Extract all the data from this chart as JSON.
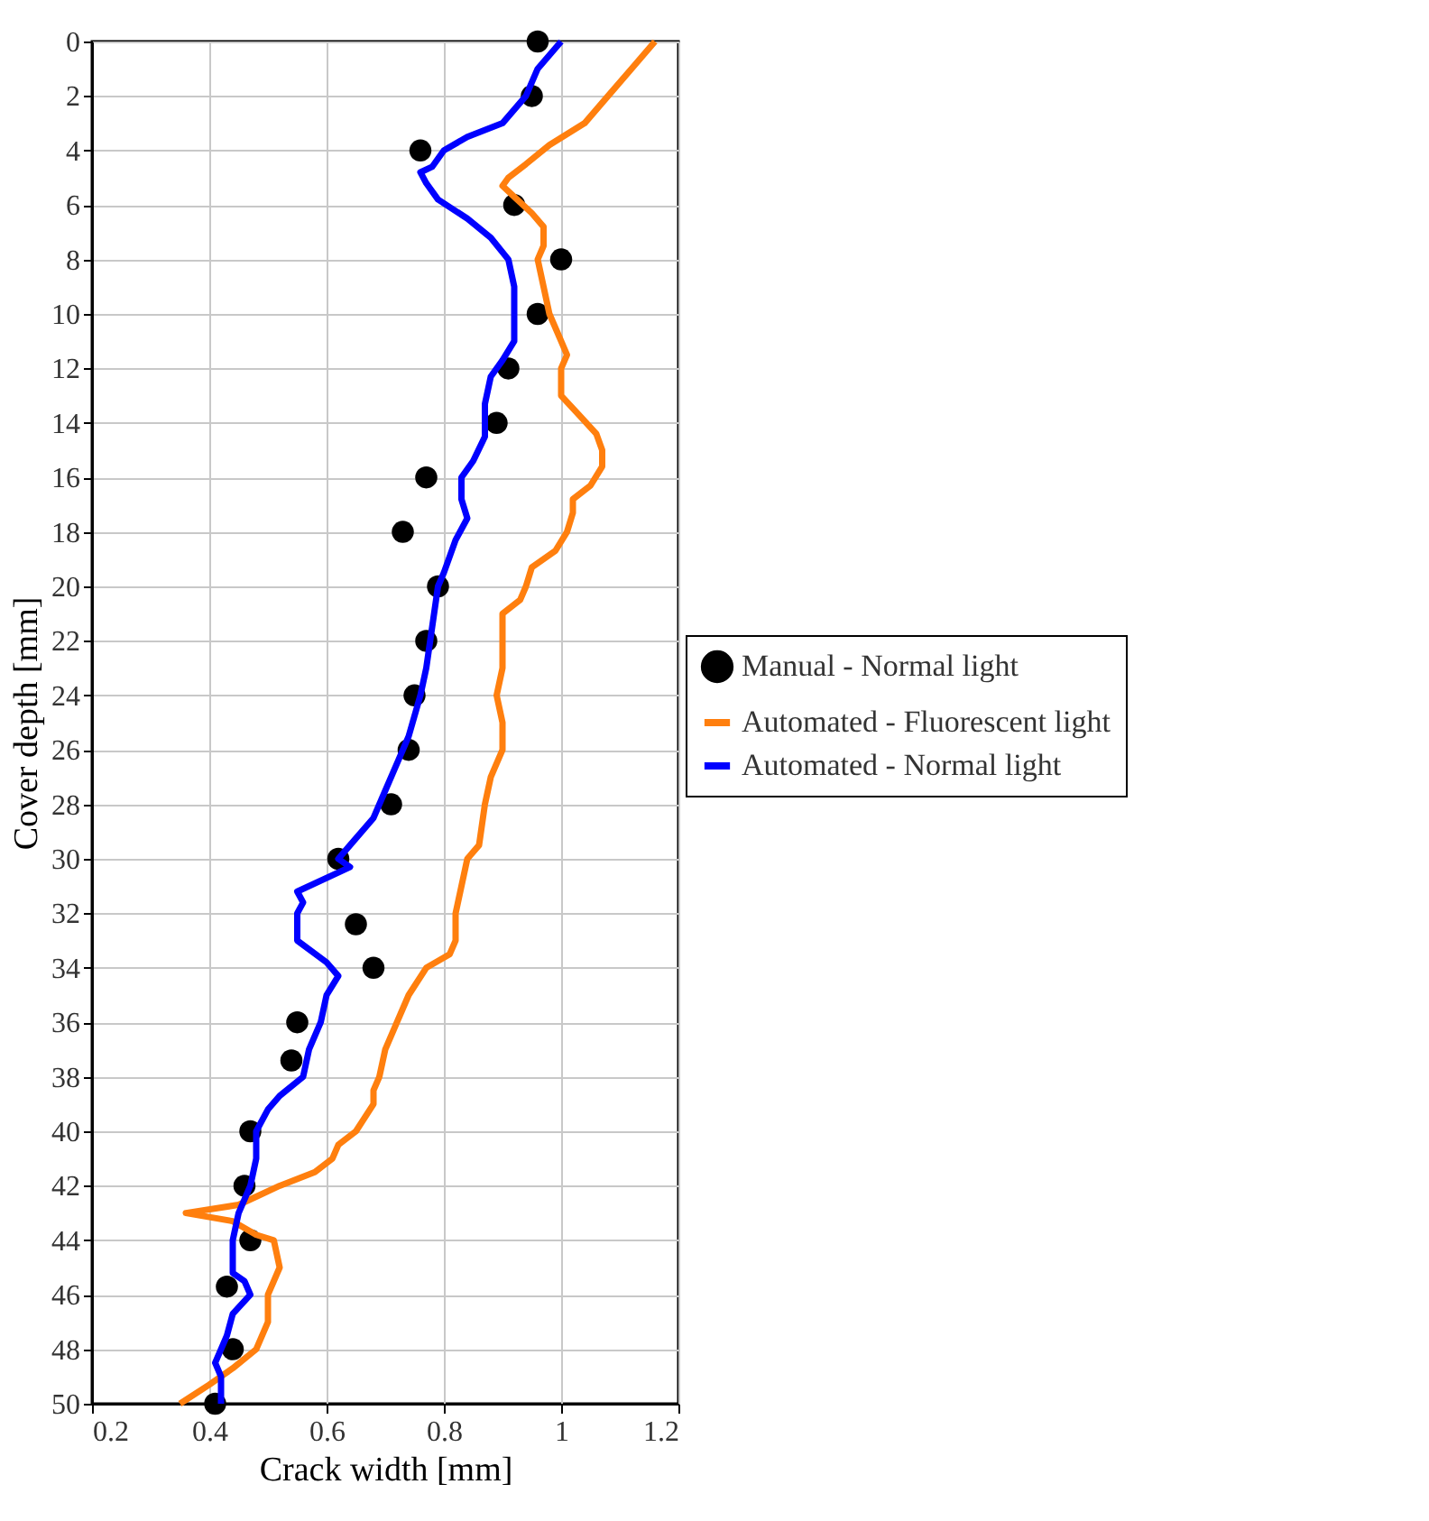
{
  "chart_data": {
    "type": "line",
    "xlabel": "Crack width [mm]",
    "ylabel": "Cover depth [mm]",
    "xlim": [
      0.2,
      1.2
    ],
    "xticks": [
      0.2,
      0.4,
      0.6,
      0.8,
      1,
      1.2
    ],
    "ylim": [
      50,
      0
    ],
    "yticks": [
      0,
      2,
      4,
      6,
      8,
      10,
      12,
      14,
      16,
      18,
      20,
      22,
      24,
      26,
      28,
      30,
      32,
      34,
      36,
      38,
      40,
      42,
      44,
      46,
      48,
      50
    ],
    "grid": true,
    "legend": "right",
    "series": [
      {
        "name": "Manual - Normal light",
        "type": "scatter",
        "marker": "circle",
        "color": "#000000",
        "x": [
          0.96,
          0.95,
          0.76,
          0.92,
          1.0,
          0.96,
          0.91,
          0.89,
          0.77,
          0.73,
          0.79,
          0.77,
          0.75,
          0.74,
          0.71,
          0.62,
          0.65,
          0.68,
          0.55,
          0.54,
          0.47,
          0.46,
          0.47,
          0.43,
          0.44,
          0.41
        ],
        "values": [
          0,
          2,
          4,
          6,
          8,
          10,
          12,
          14,
          16,
          18,
          20,
          22,
          24,
          26,
          28,
          30,
          32.4,
          34,
          36,
          37.4,
          40,
          42,
          44,
          45.7,
          48,
          50
        ]
      },
      {
        "name": "Automated - Fluorescent light",
        "color": "#ff7f0e",
        "x": [
          1.16,
          1.12,
          1.08,
          1.04,
          0.98,
          0.94,
          0.91,
          0.9,
          0.92,
          0.95,
          0.97,
          0.97,
          0.96,
          0.97,
          0.98,
          1.0,
          1.01,
          1.0,
          1.0,
          1.03,
          1.06,
          1.07,
          1.07,
          1.05,
          1.02,
          1.02,
          1.01,
          0.99,
          0.95,
          0.94,
          0.93,
          0.9,
          0.9,
          0.9,
          0.89,
          0.9,
          0.9,
          0.88,
          0.87,
          0.86,
          0.84,
          0.83,
          0.82,
          0.82,
          0.81,
          0.77,
          0.74,
          0.72,
          0.7,
          0.69,
          0.68,
          0.68,
          0.65,
          0.62,
          0.61,
          0.58,
          0.52,
          0.48,
          0.45,
          0.36,
          0.44,
          0.48,
          0.51,
          0.52,
          0.5,
          0.5,
          0.48,
          0.44,
          0.4,
          0.35
        ],
        "values": [
          0,
          1,
          2,
          3,
          3.8,
          4.5,
          5,
          5.3,
          5.7,
          6.3,
          6.8,
          7.5,
          8,
          9,
          10,
          11,
          11.5,
          12,
          13,
          13.7,
          14.4,
          15,
          15.6,
          16.3,
          16.8,
          17.3,
          18,
          18.7,
          19.3,
          20,
          20.5,
          21,
          22,
          23,
          24,
          25,
          26,
          27,
          28,
          29.5,
          30,
          31,
          32,
          33,
          33.5,
          34,
          35,
          36,
          37,
          38,
          38.5,
          39,
          40,
          40.5,
          41,
          41.5,
          42,
          42.4,
          42.7,
          43,
          43.3,
          43.8,
          44,
          45,
          46,
          47,
          48,
          48.7,
          49.3,
          50
        ]
      },
      {
        "name": "Automated - Normal light",
        "color": "#0000ff",
        "x": [
          1.0,
          0.96,
          0.94,
          0.9,
          0.84,
          0.8,
          0.78,
          0.76,
          0.77,
          0.79,
          0.84,
          0.88,
          0.91,
          0.92,
          0.92,
          0.92,
          0.9,
          0.88,
          0.87,
          0.87,
          0.85,
          0.83,
          0.83,
          0.84,
          0.82,
          0.8,
          0.79,
          0.78,
          0.77,
          0.76,
          0.74,
          0.72,
          0.7,
          0.68,
          0.64,
          0.62,
          0.64,
          0.55,
          0.56,
          0.55,
          0.55,
          0.6,
          0.62,
          0.6,
          0.59,
          0.57,
          0.56,
          0.52,
          0.5,
          0.48,
          0.48,
          0.47,
          0.45,
          0.44,
          0.44,
          0.46,
          0.47,
          0.44,
          0.43,
          0.42,
          0.41,
          0.42,
          0.42
        ],
        "values": [
          0,
          1,
          2,
          3,
          3.5,
          4,
          4.6,
          4.8,
          5.2,
          5.8,
          6.5,
          7.2,
          8,
          9,
          10,
          11,
          11.7,
          12.3,
          13.3,
          14.5,
          15.4,
          16,
          16.8,
          17.5,
          18.3,
          19.5,
          20,
          21.5,
          23,
          24,
          25.5,
          26.5,
          27.5,
          28.5,
          29.5,
          30,
          30.3,
          31.2,
          31.6,
          32,
          33,
          33.8,
          34.3,
          35,
          36,
          37,
          38,
          38.7,
          39.2,
          40,
          41,
          42,
          43,
          44,
          45.2,
          45.5,
          46,
          46.7,
          47.5,
          48,
          48.5,
          49,
          50
        ]
      }
    ]
  }
}
